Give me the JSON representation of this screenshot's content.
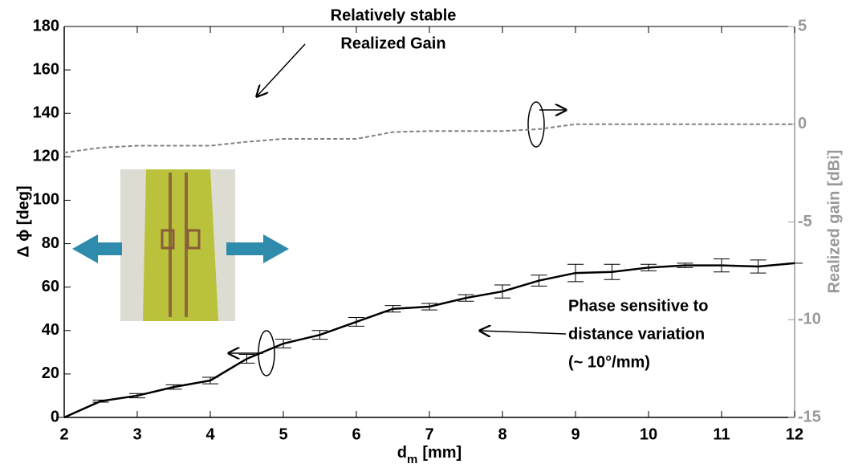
{
  "chart_data": {
    "type": "line",
    "xlabel": "d",
    "xlabel_sub": "m",
    "xlabel_unit": "[mm]",
    "ylabel": "Δ ϕ [deg]",
    "y2label": "Realized gain [dBi]",
    "xlim": [
      2,
      12
    ],
    "xticks": [
      2,
      3,
      4,
      5,
      6,
      7,
      8,
      9,
      10,
      11,
      12
    ],
    "ylim": [
      0,
      180
    ],
    "yticks": [
      0,
      20,
      40,
      60,
      80,
      100,
      120,
      140,
      160,
      180
    ],
    "y2lim": [
      -15,
      5
    ],
    "y2ticks": [
      -15,
      -10,
      -5,
      0,
      5
    ],
    "x": [
      2,
      2.5,
      3,
      3.5,
      4,
      4.5,
      5,
      5.5,
      6,
      6.5,
      7,
      7.5,
      8,
      8.5,
      9,
      9.5,
      10,
      10.5,
      11,
      11.5,
      12
    ],
    "series": [
      {
        "color": "#000000",
        "axis": "y",
        "values": [
          0,
          7.5,
          10,
          14,
          17,
          27,
          34,
          38,
          44,
          50,
          51,
          55,
          58,
          63,
          66.5,
          67,
          69,
          70,
          70,
          69.5,
          71
        ],
        "errors": [
          0,
          0.5,
          1,
          1,
          1.5,
          2,
          2,
          2,
          2,
          1.5,
          1.5,
          1.5,
          3,
          2.5,
          4,
          3.5,
          1.5,
          1,
          3,
          3,
          0
        ]
      },
      {
        "color": "#808080",
        "axis": "y2",
        "dashed": true,
        "values": [
          -1.45,
          -1.2,
          -1.1,
          -1.1,
          -1.1,
          -0.9,
          -0.75,
          -0.75,
          -0.75,
          -0.4,
          -0.35,
          -0.35,
          -0.35,
          -0.25,
          0,
          0,
          0,
          0,
          0,
          0,
          0
        ]
      }
    ],
    "annotations": [
      {
        "lines": [
          "Relatively stable",
          "Realized Gain"
        ]
      },
      {
        "lines": [
          "Phase sensitive to",
          "distance variation",
          "(~ 10°/mm)"
        ]
      }
    ]
  }
}
